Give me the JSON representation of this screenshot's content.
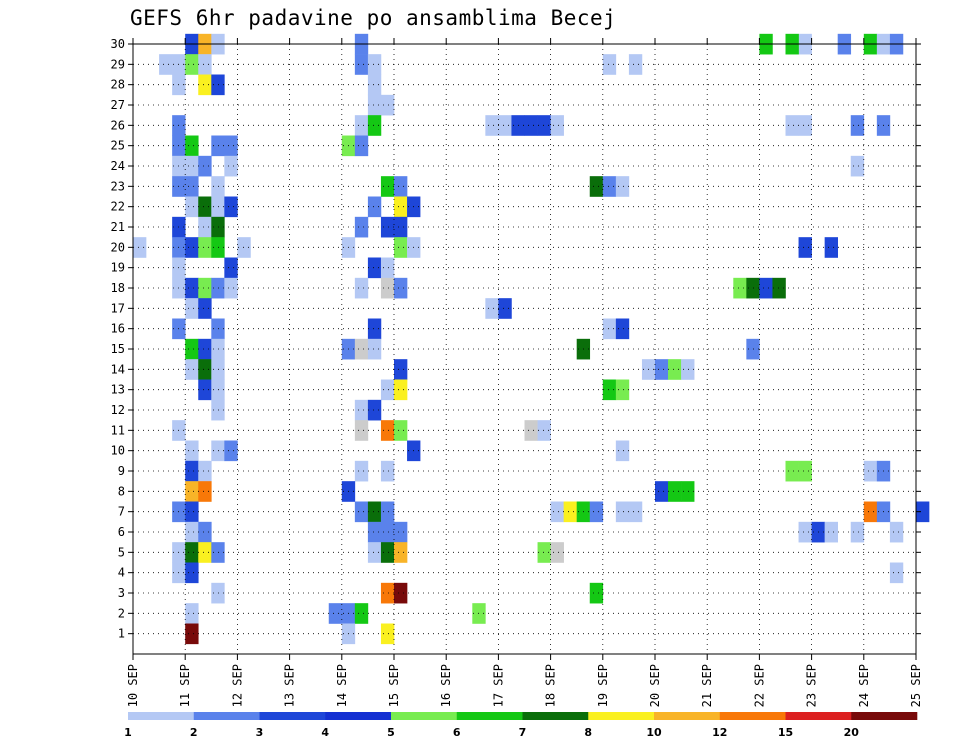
{
  "chart_data": {
    "type": "heatmap",
    "title": "GEFS 6hr padavine po ansamblima Becej",
    "xlabel": "",
    "ylabel": "",
    "x_axis": {
      "type": "date",
      "start": "2024-09-10T00:00",
      "end": "2024-09-25T00:00",
      "tick_labels": [
        "10 SEP",
        "11 SEP",
        "12 SEP",
        "13 SEP",
        "14 SEP",
        "15 SEP",
        "16 SEP",
        "17 SEP",
        "18 SEP",
        "19 SEP",
        "20 SEP",
        "21 SEP",
        "22 SEP",
        "23 SEP",
        "24 SEP",
        "25 SEP"
      ],
      "step_hours": 6
    },
    "y_axis": {
      "tick_labels": [
        "1",
        "2",
        "3",
        "4",
        "5",
        "6",
        "7",
        "8",
        "9",
        "10",
        "11",
        "12",
        "13",
        "14",
        "15",
        "16",
        "17",
        "18",
        "19",
        "20",
        "21",
        "22",
        "23",
        "24",
        "25",
        "26",
        "27",
        "28",
        "29",
        "30"
      ],
      "ylim": [
        0,
        30
      ]
    },
    "grid": true,
    "legend": {
      "placement": "bottom",
      "labels": [
        "1",
        "2",
        "3",
        "4",
        "5",
        "6",
        "7",
        "8",
        "10",
        "12",
        "15",
        "20"
      ],
      "colors": [
        "#b4c8f4",
        "#5a82eb",
        "#1e46d8",
        "#1430d2",
        "#78ec50",
        "#14c814",
        "#0a6e0a",
        "#faf020",
        "#f8b428",
        "#f87808",
        "#dc2020",
        "#780a0a"
      ]
    },
    "cells": [
      {
        "x": "2024-09-11T00:00",
        "y": 30,
        "c": 3
      },
      {
        "x": "2024-09-11T06:00",
        "y": 30,
        "c": 10
      },
      {
        "x": "2024-09-11T12:00",
        "y": 30,
        "c": 1
      },
      {
        "x": "2024-09-14T06:00",
        "y": 30,
        "c": 2
      },
      {
        "x": "2024-09-22T00:00",
        "y": 30,
        "c": 6
      },
      {
        "x": "2024-09-22T18:00",
        "y": 30,
        "c": 1
      },
      {
        "x": "2024-09-22T12:00",
        "y": 30,
        "c": 6
      },
      {
        "x": "2024-09-23T12:00",
        "y": 30,
        "c": 2
      },
      {
        "x": "2024-09-24T00:00",
        "y": 30,
        "c": 6
      },
      {
        "x": "2024-09-24T06:00",
        "y": 30,
        "c": 1
      },
      {
        "x": "2024-09-24T12:00",
        "y": 30,
        "c": 2
      },
      {
        "x": "2024-09-10T12:00",
        "y": 29,
        "c": 1
      },
      {
        "x": "2024-09-10T18:00",
        "y": 29,
        "c": 1
      },
      {
        "x": "2024-09-11T00:00",
        "y": 29,
        "c": 5
      },
      {
        "x": "2024-09-11T06:00",
        "y": 29,
        "c": 1
      },
      {
        "x": "2024-09-14T06:00",
        "y": 29,
        "c": 2
      },
      {
        "x": "2024-09-14T12:00",
        "y": 29,
        "c": 1
      },
      {
        "x": "2024-09-19T00:00",
        "y": 29,
        "c": 1
      },
      {
        "x": "2024-09-19T12:00",
        "y": 29,
        "c": 1
      },
      {
        "x": "2024-09-10T18:00",
        "y": 28,
        "c": 1
      },
      {
        "x": "2024-09-11T06:00",
        "y": 28,
        "c": 8
      },
      {
        "x": "2024-09-11T12:00",
        "y": 28,
        "c": 3
      },
      {
        "x": "2024-09-14T12:00",
        "y": 28,
        "c": 1
      },
      {
        "x": "2024-09-14T12:00",
        "y": 27,
        "c": 1
      },
      {
        "x": "2024-09-14T18:00",
        "y": 27,
        "c": 1
      },
      {
        "x": "2024-09-10T18:00",
        "y": 26,
        "c": 2
      },
      {
        "x": "2024-09-14T06:00",
        "y": 26,
        "c": 1
      },
      {
        "x": "2024-09-14T12:00",
        "y": 26,
        "c": 6
      },
      {
        "x": "2024-09-16T18:00",
        "y": 26,
        "c": 1
      },
      {
        "x": "2024-09-17T00:00",
        "y": 26,
        "c": 1
      },
      {
        "x": "2024-09-17T06:00",
        "y": 26,
        "c": 3
      },
      {
        "x": "2024-09-17T12:00",
        "y": 26,
        "c": 3
      },
      {
        "x": "2024-09-17T18:00",
        "y": 26,
        "c": 3
      },
      {
        "x": "2024-09-18T00:00",
        "y": 26,
        "c": 1
      },
      {
        "x": "2024-09-22T12:00",
        "y": 26,
        "c": 1
      },
      {
        "x": "2024-09-22T18:00",
        "y": 26,
        "c": 1
      },
      {
        "x": "2024-09-23T18:00",
        "y": 26,
        "c": 2
      },
      {
        "x": "2024-09-24T06:00",
        "y": 26,
        "c": 2
      },
      {
        "x": "2024-09-10T18:00",
        "y": 25,
        "c": 2
      },
      {
        "x": "2024-09-11T00:00",
        "y": 25,
        "c": 6
      },
      {
        "x": "2024-09-11T12:00",
        "y": 25,
        "c": 2
      },
      {
        "x": "2024-09-11T18:00",
        "y": 25,
        "c": 2
      },
      {
        "x": "2024-09-14T00:00",
        "y": 25,
        "c": 5
      },
      {
        "x": "2024-09-14T06:00",
        "y": 25,
        "c": 2
      },
      {
        "x": "2024-09-10T18:00",
        "y": 24,
        "c": 1
      },
      {
        "x": "2024-09-11T00:00",
        "y": 24,
        "c": 1
      },
      {
        "x": "2024-09-11T06:00",
        "y": 24,
        "c": 2
      },
      {
        "x": "2024-09-11T18:00",
        "y": 24,
        "c": 1
      },
      {
        "x": "2024-09-23T18:00",
        "y": 24,
        "c": 1
      },
      {
        "x": "2024-09-10T18:00",
        "y": 23,
        "c": 2
      },
      {
        "x": "2024-09-11T00:00",
        "y": 23,
        "c": 2
      },
      {
        "x": "2024-09-11T12:00",
        "y": 23,
        "c": 1
      },
      {
        "x": "2024-09-14T18:00",
        "y": 23,
        "c": 6
      },
      {
        "x": "2024-09-15T00:00",
        "y": 23,
        "c": 2
      },
      {
        "x": "2024-09-18T18:00",
        "y": 23,
        "c": 7
      },
      {
        "x": "2024-09-19T00:00",
        "y": 23,
        "c": 2
      },
      {
        "x": "2024-09-19T06:00",
        "y": 23,
        "c": 1
      },
      {
        "x": "2024-09-11T00:00",
        "y": 22,
        "c": 1
      },
      {
        "x": "2024-09-11T06:00",
        "y": 22,
        "c": 7
      },
      {
        "x": "2024-09-11T12:00",
        "y": 22,
        "c": 1
      },
      {
        "x": "2024-09-11T18:00",
        "y": 22,
        "c": 3
      },
      {
        "x": "2024-09-14T12:00",
        "y": 22,
        "c": 2
      },
      {
        "x": "2024-09-15T00:00",
        "y": 22,
        "c": 8
      },
      {
        "x": "2024-09-15T06:00",
        "y": 22,
        "c": 3
      },
      {
        "x": "2024-09-10T18:00",
        "y": 21,
        "c": 3
      },
      {
        "x": "2024-09-11T06:00",
        "y": 21,
        "c": 1
      },
      {
        "x": "2024-09-11T12:00",
        "y": 21,
        "c": 7
      },
      {
        "x": "2024-09-14T06:00",
        "y": 21,
        "c": 2
      },
      {
        "x": "2024-09-14T18:00",
        "y": 21,
        "c": 3
      },
      {
        "x": "2024-09-15T00:00",
        "y": 21,
        "c": 3
      },
      {
        "x": "2024-09-10T00:00",
        "y": 20,
        "c": 1
      },
      {
        "x": "2024-09-10T18:00",
        "y": 20,
        "c": 2
      },
      {
        "x": "2024-09-11T00:00",
        "y": 20,
        "c": 3
      },
      {
        "x": "2024-09-11T06:00",
        "y": 20,
        "c": 5
      },
      {
        "x": "2024-09-11T12:00",
        "y": 20,
        "c": 6
      },
      {
        "x": "2024-09-12T00:00",
        "y": 20,
        "c": 1
      },
      {
        "x": "2024-09-14T00:00",
        "y": 20,
        "c": 1
      },
      {
        "x": "2024-09-15T00:00",
        "y": 20,
        "c": 5
      },
      {
        "x": "2024-09-15T06:00",
        "y": 20,
        "c": 1
      },
      {
        "x": "2024-09-22T18:00",
        "y": 20,
        "c": 3
      },
      {
        "x": "2024-09-23T06:00",
        "y": 20,
        "c": 3
      },
      {
        "x": "2024-09-10T18:00",
        "y": 19,
        "c": 1
      },
      {
        "x": "2024-09-11T18:00",
        "y": 19,
        "c": 3
      },
      {
        "x": "2024-09-14T12:00",
        "y": 19,
        "c": 3
      },
      {
        "x": "2024-09-14T18:00",
        "y": 19,
        "c": 1
      },
      {
        "x": "2024-09-10T18:00",
        "y": 18,
        "c": 1
      },
      {
        "x": "2024-09-11T00:00",
        "y": 18,
        "c": 3
      },
      {
        "x": "2024-09-11T06:00",
        "y": 18,
        "c": 5
      },
      {
        "x": "2024-09-11T12:00",
        "y": 18,
        "c": 2
      },
      {
        "x": "2024-09-11T18:00",
        "y": 18,
        "c": 1
      },
      {
        "x": "2024-09-14T06:00",
        "y": 18,
        "c": 1
      },
      {
        "x": "2024-09-14T18:00",
        "y": 18,
        "c": 9
      },
      {
        "x": "2024-09-15T00:00",
        "y": 18,
        "c": 2
      },
      {
        "x": "2024-09-21T12:00",
        "y": 18,
        "c": 5
      },
      {
        "x": "2024-09-21T18:00",
        "y": 18,
        "c": 7
      },
      {
        "x": "2024-09-22T00:00",
        "y": 18,
        "c": 3
      },
      {
        "x": "2024-09-22T06:00",
        "y": 18,
        "c": 7
      },
      {
        "x": "2024-09-11T00:00",
        "y": 17,
        "c": 1
      },
      {
        "x": "2024-09-11T06:00",
        "y": 17,
        "c": 3
      },
      {
        "x": "2024-09-16T18:00",
        "y": 17,
        "c": 1
      },
      {
        "x": "2024-09-17T00:00",
        "y": 17,
        "c": 3
      },
      {
        "x": "2024-09-10T18:00",
        "y": 16,
        "c": 2
      },
      {
        "x": "2024-09-11T12:00",
        "y": 16,
        "c": 2
      },
      {
        "x": "2024-09-14T12:00",
        "y": 16,
        "c": 3
      },
      {
        "x": "2024-09-19T00:00",
        "y": 16,
        "c": 1
      },
      {
        "x": "2024-09-19T06:00",
        "y": 16,
        "c": 3
      },
      {
        "x": "2024-09-11T00:00",
        "y": 15,
        "c": 6
      },
      {
        "x": "2024-09-11T06:00",
        "y": 15,
        "c": 3
      },
      {
        "x": "2024-09-11T12:00",
        "y": 15,
        "c": 1
      },
      {
        "x": "2024-09-14T00:00",
        "y": 15,
        "c": 2
      },
      {
        "x": "2024-09-14T06:00",
        "y": 15,
        "c": 9
      },
      {
        "x": "2024-09-14T12:00",
        "y": 15,
        "c": 1
      },
      {
        "x": "2024-09-18T12:00",
        "y": 15,
        "c": 7
      },
      {
        "x": "2024-09-21T18:00",
        "y": 15,
        "c": 2
      },
      {
        "x": "2024-09-11T00:00",
        "y": 14,
        "c": 1
      },
      {
        "x": "2024-09-11T06:00",
        "y": 14,
        "c": 7
      },
      {
        "x": "2024-09-11T12:00",
        "y": 14,
        "c": 1
      },
      {
        "x": "2024-09-15T00:00",
        "y": 14,
        "c": 3
      },
      {
        "x": "2024-09-19T18:00",
        "y": 14,
        "c": 1
      },
      {
        "x": "2024-09-20T00:00",
        "y": 14,
        "c": 2
      },
      {
        "x": "2024-09-20T06:00",
        "y": 14,
        "c": 5
      },
      {
        "x": "2024-09-20T12:00",
        "y": 14,
        "c": 1
      },
      {
        "x": "2024-09-11T06:00",
        "y": 13,
        "c": 3
      },
      {
        "x": "2024-09-11T12:00",
        "y": 13,
        "c": 1
      },
      {
        "x": "2024-09-14T18:00",
        "y": 13,
        "c": 1
      },
      {
        "x": "2024-09-15T00:00",
        "y": 13,
        "c": 8
      },
      {
        "x": "2024-09-19T00:00",
        "y": 13,
        "c": 6
      },
      {
        "x": "2024-09-19T06:00",
        "y": 13,
        "c": 5
      },
      {
        "x": "2024-09-11T12:00",
        "y": 12,
        "c": 1
      },
      {
        "x": "2024-09-14T06:00",
        "y": 12,
        "c": 1
      },
      {
        "x": "2024-09-14T12:00",
        "y": 12,
        "c": 3
      },
      {
        "x": "2024-09-10T18:00",
        "y": 11,
        "c": 1
      },
      {
        "x": "2024-09-14T06:00",
        "y": 11,
        "c": 9
      },
      {
        "x": "2024-09-14T18:00",
        "y": 11,
        "c": 12
      },
      {
        "x": "2024-09-15T00:00",
        "y": 11,
        "c": 5
      },
      {
        "x": "2024-09-17T12:00",
        "y": 11,
        "c": 9
      },
      {
        "x": "2024-09-17T18:00",
        "y": 11,
        "c": 1
      },
      {
        "x": "2024-09-11T00:00",
        "y": 10,
        "c": 1
      },
      {
        "x": "2024-09-11T12:00",
        "y": 10,
        "c": 1
      },
      {
        "x": "2024-09-11T18:00",
        "y": 10,
        "c": 2
      },
      {
        "x": "2024-09-15T06:00",
        "y": 10,
        "c": 3
      },
      {
        "x": "2024-09-19T06:00",
        "y": 10,
        "c": 1
      },
      {
        "x": "2024-09-11T00:00",
        "y": 9,
        "c": 3
      },
      {
        "x": "2024-09-11T06:00",
        "y": 9,
        "c": 1
      },
      {
        "x": "2024-09-14T06:00",
        "y": 9,
        "c": 1
      },
      {
        "x": "2024-09-14T18:00",
        "y": 9,
        "c": 1
      },
      {
        "x": "2024-09-22T12:00",
        "y": 9,
        "c": 5
      },
      {
        "x": "2024-09-22T18:00",
        "y": 9,
        "c": 5
      },
      {
        "x": "2024-09-24T00:00",
        "y": 9,
        "c": 1
      },
      {
        "x": "2024-09-24T06:00",
        "y": 9,
        "c": 2
      },
      {
        "x": "2024-09-11T00:00",
        "y": 8,
        "c": 10
      },
      {
        "x": "2024-09-11T06:00",
        "y": 8,
        "c": 12
      },
      {
        "x": "2024-09-14T00:00",
        "y": 8,
        "c": 3
      },
      {
        "x": "2024-09-20T00:00",
        "y": 8,
        "c": 3
      },
      {
        "x": "2024-09-20T06:00",
        "y": 8,
        "c": 6
      },
      {
        "x": "2024-09-20T12:00",
        "y": 8,
        "c": 6
      },
      {
        "x": "2024-09-10T18:00",
        "y": 7,
        "c": 2
      },
      {
        "x": "2024-09-11T00:00",
        "y": 7,
        "c": 3
      },
      {
        "x": "2024-09-14T06:00",
        "y": 7,
        "c": 2
      },
      {
        "x": "2024-09-14T12:00",
        "y": 7,
        "c": 7
      },
      {
        "x": "2024-09-14T18:00",
        "y": 7,
        "c": 2
      },
      {
        "x": "2024-09-18T00:00",
        "y": 7,
        "c": 1
      },
      {
        "x": "2024-09-18T06:00",
        "y": 7,
        "c": 8
      },
      {
        "x": "2024-09-18T12:00",
        "y": 7,
        "c": 6
      },
      {
        "x": "2024-09-18T18:00",
        "y": 7,
        "c": 2
      },
      {
        "x": "2024-09-19T06:00",
        "y": 7,
        "c": 1
      },
      {
        "x": "2024-09-19T12:00",
        "y": 7,
        "c": 1
      },
      {
        "x": "2024-09-24T00:00",
        "y": 7,
        "c": 12
      },
      {
        "x": "2024-09-24T06:00",
        "y": 7,
        "c": 2
      },
      {
        "x": "2024-09-25T00:00",
        "y": 7,
        "c": 3
      },
      {
        "x": "2024-09-11T00:00",
        "y": 6,
        "c": 1
      },
      {
        "x": "2024-09-11T06:00",
        "y": 6,
        "c": 2
      },
      {
        "x": "2024-09-14T12:00",
        "y": 6,
        "c": 2
      },
      {
        "x": "2024-09-14T18:00",
        "y": 6,
        "c": 2
      },
      {
        "x": "2024-09-15T00:00",
        "y": 6,
        "c": 2
      },
      {
        "x": "2024-09-22T18:00",
        "y": 6,
        "c": 1
      },
      {
        "x": "2024-09-23T00:00",
        "y": 6,
        "c": 3
      },
      {
        "x": "2024-09-23T06:00",
        "y": 6,
        "c": 1
      },
      {
        "x": "2024-09-23T18:00",
        "y": 6,
        "c": 1
      },
      {
        "x": "2024-09-24T12:00",
        "y": 6,
        "c": 1
      },
      {
        "x": "2024-09-10T18:00",
        "y": 5,
        "c": 1
      },
      {
        "x": "2024-09-11T00:00",
        "y": 5,
        "c": 7
      },
      {
        "x": "2024-09-11T06:00",
        "y": 5,
        "c": 8
      },
      {
        "x": "2024-09-11T12:00",
        "y": 5,
        "c": 2
      },
      {
        "x": "2024-09-14T12:00",
        "y": 5,
        "c": 1
      },
      {
        "x": "2024-09-14T18:00",
        "y": 5,
        "c": 7
      },
      {
        "x": "2024-09-15T00:00",
        "y": 5,
        "c": 10
      },
      {
        "x": "2024-09-17T18:00",
        "y": 5,
        "c": 5
      },
      {
        "x": "2024-09-18T00:00",
        "y": 5,
        "c": 9
      },
      {
        "x": "2024-09-10T18:00",
        "y": 4,
        "c": 1
      },
      {
        "x": "2024-09-11T00:00",
        "y": 4,
        "c": 3
      },
      {
        "x": "2024-09-24T12:00",
        "y": 4,
        "c": 1
      },
      {
        "x": "2024-09-11T12:00",
        "y": 3,
        "c": 1
      },
      {
        "x": "2024-09-14T18:00",
        "y": 3,
        "c": 12
      },
      {
        "x": "2024-09-15T00:00",
        "y": 3,
        "c": 20
      },
      {
        "x": "2024-09-18T18:00",
        "y": 3,
        "c": 6
      },
      {
        "x": "2024-09-11T00:00",
        "y": 2,
        "c": 1
      },
      {
        "x": "2024-09-13T18:00",
        "y": 2,
        "c": 2
      },
      {
        "x": "2024-09-14T00:00",
        "y": 2,
        "c": 2
      },
      {
        "x": "2024-09-14T06:00",
        "y": 2,
        "c": 6
      },
      {
        "x": "2024-09-16T12:00",
        "y": 2,
        "c": 5
      },
      {
        "x": "2024-09-11T00:00",
        "y": 1,
        "c": 20
      },
      {
        "x": "2024-09-14T00:00",
        "y": 1,
        "c": 1
      },
      {
        "x": "2024-09-14T18:00",
        "y": 1,
        "c": 8
      }
    ]
  }
}
